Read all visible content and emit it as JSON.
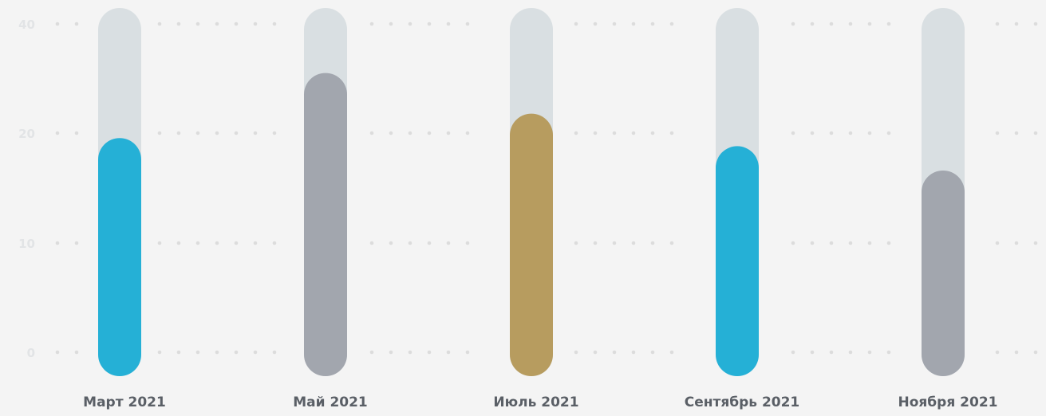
{
  "chart_data": {
    "type": "bar",
    "categories": [
      "Март 2021",
      "Май 2021",
      "Июль 2021",
      "Сентябрь 2021",
      "Ноября 2021"
    ],
    "values": [
      24,
      32,
      27,
      23,
      20
    ],
    "max_value": 40,
    "bar_colors": [
      "#25b0d6",
      "#a2a6ae",
      "#b79c5f",
      "#25b0d6",
      "#a2a6ae"
    ],
    "track_color": "#d9dfe2",
    "dot_color": "#dcdcdc",
    "y_ticks": [
      {
        "label": "40",
        "value": 40
      },
      {
        "label": "20",
        "value": 20
      },
      {
        "label": "10",
        "value": 10
      },
      {
        "label": "0",
        "value": 0
      }
    ],
    "grid": true,
    "legend": "none"
  }
}
